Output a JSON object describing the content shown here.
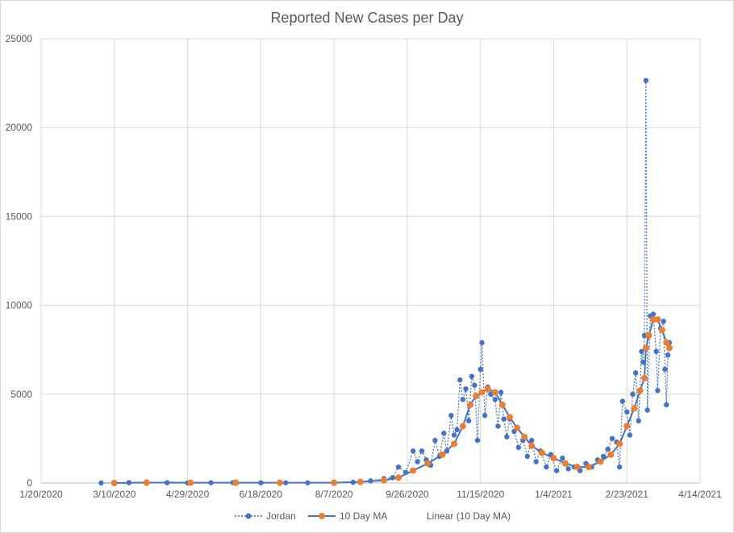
{
  "chart_data": {
    "type": "line",
    "title": "Reported New Cases per Day",
    "xlabel": "",
    "ylabel": "",
    "x_axis": {
      "min": "2020-01-20",
      "max": "2021-04-14",
      "tick_labels": [
        "1/20/2020",
        "3/10/2020",
        "4/29/2020",
        "6/18/2020",
        "8/7/2020",
        "9/26/2020",
        "11/15/2020",
        "1/4/2021",
        "2/23/2021",
        "4/14/2021"
      ],
      "tick_dates": [
        "2020-01-20",
        "2020-03-10",
        "2020-04-29",
        "2020-06-18",
        "2020-08-07",
        "2020-09-26",
        "2020-11-15",
        "2021-01-04",
        "2021-02-23",
        "2021-04-14"
      ]
    },
    "y_axis": {
      "min": 0,
      "max": 25000,
      "tick_labels": [
        "0",
        "5000",
        "10000",
        "15000",
        "20000",
        "25000"
      ],
      "tick_values": [
        0,
        5000,
        10000,
        15000,
        20000,
        25000
      ]
    },
    "grid": "vertical and horizontal",
    "legend_position": "bottom",
    "series": [
      {
        "name": "Jordan",
        "style": "dotted line with circle markers",
        "color": "#4472c4",
        "points": [
          [
            "2020-03-01",
            0
          ],
          [
            "2020-03-10",
            0
          ],
          [
            "2020-03-20",
            20
          ],
          [
            "2020-04-01",
            30
          ],
          [
            "2020-04-15",
            15
          ],
          [
            "2020-04-29",
            5
          ],
          [
            "2020-05-15",
            15
          ],
          [
            "2020-05-30",
            20
          ],
          [
            "2020-06-18",
            10
          ],
          [
            "2020-07-05",
            15
          ],
          [
            "2020-07-20",
            10
          ],
          [
            "2020-08-07",
            15
          ],
          [
            "2020-08-20",
            40
          ],
          [
            "2020-09-01",
            120
          ],
          [
            "2020-09-10",
            250
          ],
          [
            "2020-09-16",
            300
          ],
          [
            "2020-09-20",
            900
          ],
          [
            "2020-09-25",
            600
          ],
          [
            "2020-09-30",
            1800
          ],
          [
            "2020-10-03",
            1200
          ],
          [
            "2020-10-06",
            1800
          ],
          [
            "2020-10-09",
            1300
          ],
          [
            "2020-10-12",
            1000
          ],
          [
            "2020-10-15",
            2400
          ],
          [
            "2020-10-18",
            1500
          ],
          [
            "2020-10-21",
            2800
          ],
          [
            "2020-10-23",
            1800
          ],
          [
            "2020-10-26",
            3800
          ],
          [
            "2020-10-28",
            2700
          ],
          [
            "2020-10-30",
            3000
          ],
          [
            "2020-11-01",
            5800
          ],
          [
            "2020-11-03",
            4700
          ],
          [
            "2020-11-05",
            5300
          ],
          [
            "2020-11-07",
            3500
          ],
          [
            "2020-11-09",
            6000
          ],
          [
            "2020-11-11",
            5500
          ],
          [
            "2020-11-13",
            2400
          ],
          [
            "2020-11-15",
            6400
          ],
          [
            "2020-11-16",
            7900
          ],
          [
            "2020-11-18",
            3800
          ],
          [
            "2020-11-20",
            5400
          ],
          [
            "2020-11-22",
            5000
          ],
          [
            "2020-11-25",
            4700
          ],
          [
            "2020-11-27",
            3200
          ],
          [
            "2020-11-29",
            5100
          ],
          [
            "2020-12-01",
            3600
          ],
          [
            "2020-12-03",
            2600
          ],
          [
            "2020-12-05",
            3600
          ],
          [
            "2020-12-08",
            2900
          ],
          [
            "2020-12-11",
            2000
          ],
          [
            "2020-12-14",
            2400
          ],
          [
            "2020-12-17",
            1500
          ],
          [
            "2020-12-20",
            2400
          ],
          [
            "2020-12-23",
            1200
          ],
          [
            "2020-12-26",
            1800
          ],
          [
            "2020-12-30",
            900
          ],
          [
            "2021-01-02",
            1600
          ],
          [
            "2021-01-06",
            700
          ],
          [
            "2021-01-10",
            1400
          ],
          [
            "2021-01-14",
            800
          ],
          [
            "2021-01-18",
            900
          ],
          [
            "2021-01-22",
            700
          ],
          [
            "2021-01-26",
            1100
          ],
          [
            "2021-01-30",
            900
          ],
          [
            "2021-02-03",
            1300
          ],
          [
            "2021-02-07",
            1500
          ],
          [
            "2021-02-10",
            1900
          ],
          [
            "2021-02-13",
            2500
          ],
          [
            "2021-02-16",
            2300
          ],
          [
            "2021-02-18",
            900
          ],
          [
            "2021-02-20",
            4600
          ],
          [
            "2021-02-23",
            4000
          ],
          [
            "2021-02-25",
            2700
          ],
          [
            "2021-02-27",
            5000
          ],
          [
            "2021-03-01",
            6200
          ],
          [
            "2021-03-03",
            3500
          ],
          [
            "2021-03-05",
            7400
          ],
          [
            "2021-03-06",
            6800
          ],
          [
            "2021-03-07",
            8300
          ],
          [
            "2021-03-08",
            22650
          ],
          [
            "2021-03-09",
            4100
          ],
          [
            "2021-03-11",
            9400
          ],
          [
            "2021-03-13",
            9500
          ],
          [
            "2021-03-15",
            7400
          ],
          [
            "2021-03-16",
            5200
          ],
          [
            "2021-03-18",
            8700
          ],
          [
            "2021-03-20",
            9100
          ],
          [
            "2021-03-21",
            6400
          ],
          [
            "2021-03-22",
            4400
          ],
          [
            "2021-03-23",
            7200
          ],
          [
            "2021-03-24",
            7900
          ]
        ]
      },
      {
        "name": "10 Day MA",
        "style": "solid line with circle markers",
        "color": "#ed7d31",
        "points": [
          [
            "2020-03-10",
            0
          ],
          [
            "2020-04-01",
            20
          ],
          [
            "2020-05-01",
            15
          ],
          [
            "2020-06-01",
            15
          ],
          [
            "2020-07-01",
            15
          ],
          [
            "2020-08-07",
            15
          ],
          [
            "2020-08-25",
            60
          ],
          [
            "2020-09-10",
            150
          ],
          [
            "2020-09-20",
            300
          ],
          [
            "2020-09-30",
            700
          ],
          [
            "2020-10-10",
            1100
          ],
          [
            "2020-10-20",
            1600
          ],
          [
            "2020-10-28",
            2200
          ],
          [
            "2020-11-03",
            3200
          ],
          [
            "2020-11-08",
            4400
          ],
          [
            "2020-11-12",
            4900
          ],
          [
            "2020-11-16",
            5100
          ],
          [
            "2020-11-20",
            5300
          ],
          [
            "2020-11-25",
            5100
          ],
          [
            "2020-11-30",
            4400
          ],
          [
            "2020-12-05",
            3700
          ],
          [
            "2020-12-10",
            3100
          ],
          [
            "2020-12-15",
            2600
          ],
          [
            "2020-12-20",
            2100
          ],
          [
            "2020-12-27",
            1700
          ],
          [
            "2021-01-04",
            1400
          ],
          [
            "2021-01-12",
            1100
          ],
          [
            "2021-01-20",
            900
          ],
          [
            "2021-01-28",
            900
          ],
          [
            "2021-02-05",
            1200
          ],
          [
            "2021-02-12",
            1600
          ],
          [
            "2021-02-18",
            2200
          ],
          [
            "2021-02-23",
            3200
          ],
          [
            "2021-02-28",
            4200
          ],
          [
            "2021-03-04",
            5200
          ],
          [
            "2021-03-07",
            5900
          ],
          [
            "2021-03-08",
            7600
          ],
          [
            "2021-03-10",
            8300
          ],
          [
            "2021-03-13",
            9200
          ],
          [
            "2021-03-16",
            9200
          ],
          [
            "2021-03-19",
            8600
          ],
          [
            "2021-03-22",
            7900
          ],
          [
            "2021-03-24",
            7600
          ]
        ]
      }
    ],
    "legend": [
      {
        "label": "Jordan",
        "style": "dotted-marker"
      },
      {
        "label": "10 Day MA",
        "style": "solid-marker"
      },
      {
        "label": "Linear (10 Day MA)",
        "style": "none"
      }
    ]
  }
}
